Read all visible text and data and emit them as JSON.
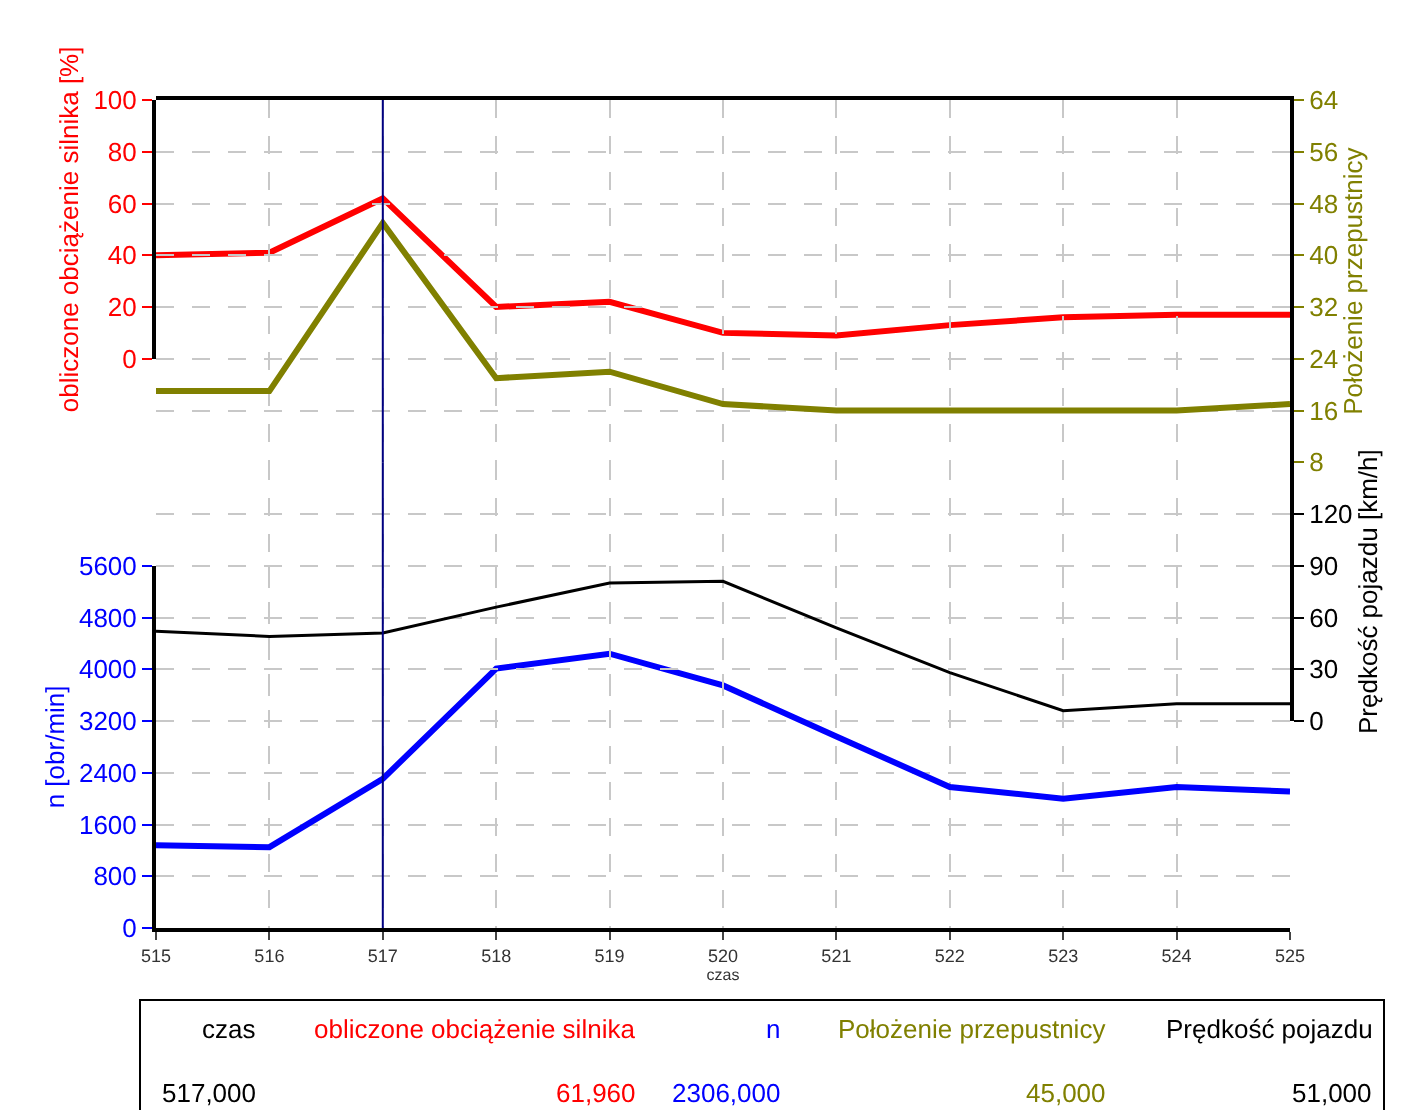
{
  "chart_data": [
    {
      "type": "line",
      "x": [
        515,
        516,
        517,
        518,
        519,
        520,
        521,
        522,
        523,
        524,
        525
      ],
      "series": [
        {
          "name": "obliczone obciążenie silnika",
          "color": "#ff0000",
          "values": [
            40,
            41,
            61.96,
            20,
            22,
            10,
            9,
            13,
            16,
            17,
            17
          ]
        },
        {
          "name": "Położenie przepustnicy",
          "color": "#808000",
          "axis": "y2",
          "values": [
            19,
            19,
            45,
            21,
            22,
            17,
            16,
            16,
            16,
            16,
            17
          ]
        }
      ],
      "xlim": [
        515,
        525
      ],
      "xticks": [
        515,
        516,
        517,
        518,
        519,
        520,
        521,
        522,
        523,
        524,
        525
      ],
      "tick_labels": "y",
      "ylim": [
        0,
        100
      ],
      "yticks": [
        0,
        20,
        40,
        60,
        80,
        100
      ],
      "ylabel": "obliczone obciążenie silnika [%]",
      "y2lim": [
        8,
        64
      ],
      "y2ticks": [
        8,
        16,
        24,
        32,
        40,
        48,
        56,
        64
      ],
      "y2label": "Położenie przepustnicy",
      "grid": true,
      "ref_lines": [
        {
          "axis": "x",
          "value": 517,
          "color": "#000080"
        }
      ],
      "annotations": [
        "czas",
        "517,000",
        "61,960",
        "2306,000",
        "45,000",
        "51,000"
      ]
    },
    {
      "type": "line",
      "x": [
        515,
        516,
        517,
        518,
        519,
        520,
        521,
        522,
        523,
        524,
        525
      ],
      "series": [
        {
          "name": "n",
          "color": "#0000ff",
          "values": [
            1280,
            1250,
            2306,
            4010,
            4240,
            3750,
            2960,
            2180,
            2000,
            2180,
            2110
          ]
        },
        {
          "name": "Prędkość pojazdu",
          "color": "#000000",
          "axis": "y2",
          "values": [
            52,
            49,
            51,
            66,
            80,
            81,
            54,
            28,
            6,
            10,
            10
          ]
        }
      ],
      "xlim": [
        515,
        525
      ],
      "xticks": [
        515,
        516,
        517,
        518,
        519,
        520,
        521,
        522,
        523,
        524,
        525
      ],
      "xlabel": "czas",
      "ylim": [
        0,
        5600
      ],
      "yticks": [
        0,
        800,
        1600,
        2400,
        3200,
        4000,
        4800,
        5600
      ],
      "ylabel": "n [obr/min]",
      "y2lim": [
        0,
        150
      ],
      "y2ticks": [
        0,
        30,
        60,
        90,
        120
      ],
      "y2label": "Prędkość pojazdu [km/h]",
      "grid": true,
      "ref_lines": [
        {
          "axis": "x",
          "value": 517,
          "color": "#000080"
        }
      ]
    }
  ]
}
